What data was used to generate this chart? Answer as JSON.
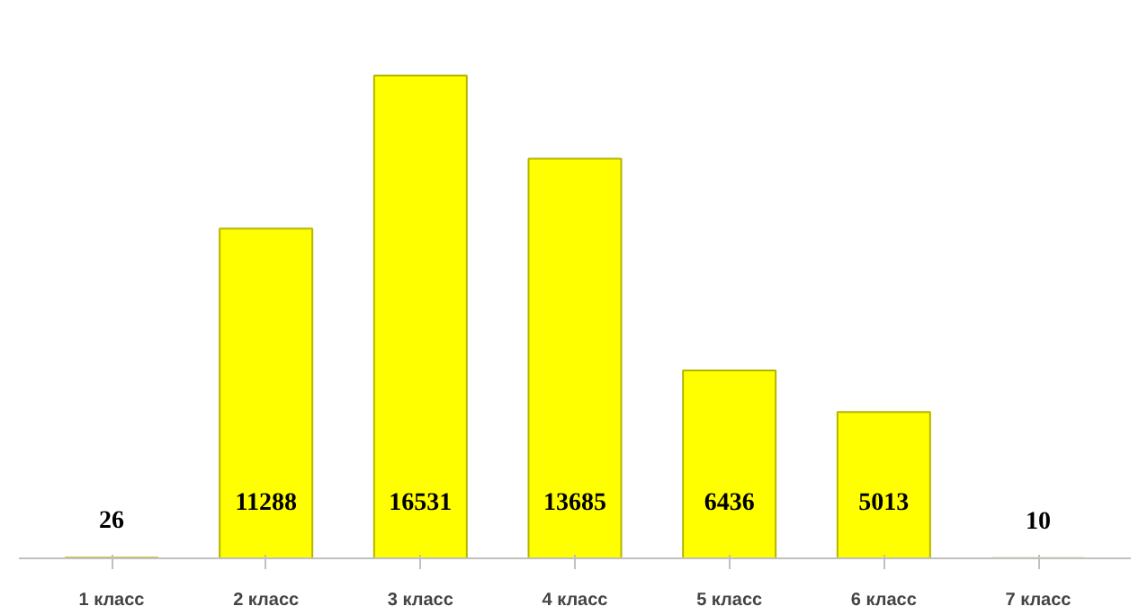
{
  "chart_data": {
    "type": "bar",
    "categories": [
      "1 класс",
      "2 класс",
      "3 класс",
      "4 класс",
      "5 класс",
      "6 класс",
      "7 класс"
    ],
    "values": [
      26,
      11288,
      16531,
      13685,
      6436,
      5013,
      10
    ],
    "color": "#ffff00",
    "data_labels": true,
    "tick_labels": "x"
  }
}
